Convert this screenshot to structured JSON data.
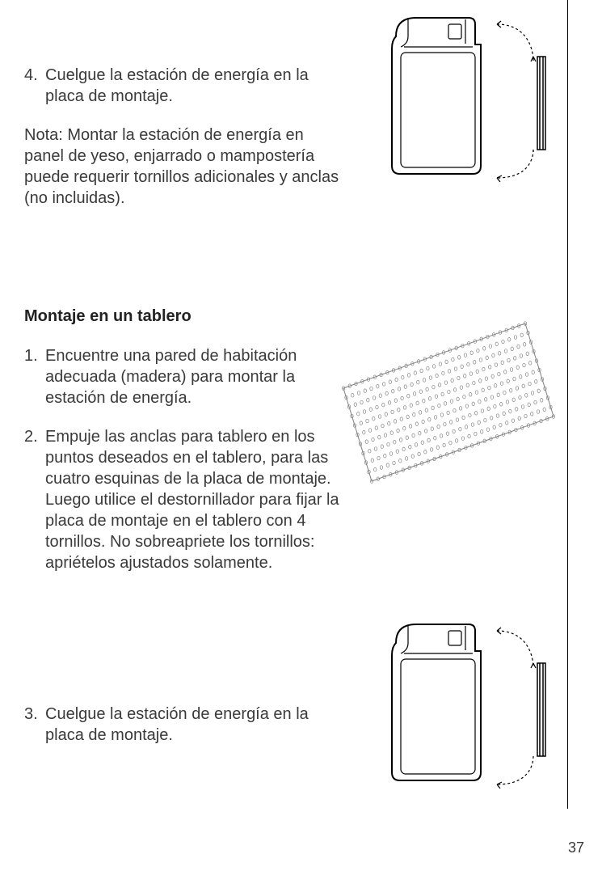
{
  "page_number": "37",
  "section1": {
    "item4_num": "4.",
    "item4_text": "Cuelgue la estación de energía en la placa de montaje.",
    "note": "Nota: Montar la estación de energía en panel de yeso,  enjarrado o  mampostería puede requerir tornillos adicionales y anclas (no incluidas)."
  },
  "section2": {
    "heading": "Montaje en  un tablero",
    "item1_num": "1.",
    "item1_text": "Encuentre una pared de habitación adecuada (madera) para montar la estación de energía.",
    "item2_num": "2.",
    "item2_text": "Empuje las anclas para tablero  en los puntos deseados en el tablero, para las cuatro esquinas de la placa de montaje. Luego utilice el destornillador para fijar la placa de montaje en el tablero con 4 tornillos. No sobreapriete los tornillos: apriételos ajustados solamente.",
    "item3_num": "3.",
    "item3_text": "Cuelgue la estación de energía en la placa de montaje."
  },
  "figures": {
    "device": {
      "stroke": "#000000",
      "fill": "#ffffff",
      "dash_stroke": "#000000"
    },
    "pegboard": {
      "stroke": "#808080",
      "hole_stroke": "#808080",
      "rows": 11,
      "cols": 30
    }
  }
}
